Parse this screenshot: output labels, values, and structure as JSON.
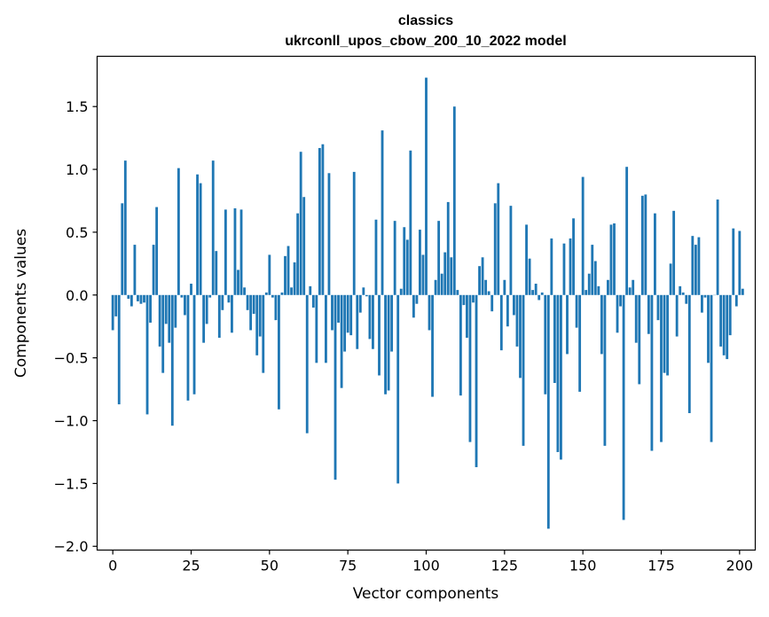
{
  "chart_data": {
    "type": "bar",
    "title": "classics",
    "subtitle": "ukrconll_upos_cbow_200_10_2022 model",
    "xlabel": "Vector components",
    "ylabel": "Components values",
    "xlim": [
      -5,
      205
    ],
    "ylim": [
      -2.03,
      1.9
    ],
    "xticks": [
      0,
      25,
      50,
      75,
      100,
      125,
      150,
      175,
      200
    ],
    "xtick_labels": [
      "0",
      "25",
      "50",
      "75",
      "100",
      "125",
      "150",
      "175",
      "200"
    ],
    "yticks": [
      -2.0,
      -1.5,
      -1.0,
      -0.5,
      0.0,
      0.5,
      1.0,
      1.5
    ],
    "ytick_labels": [
      "−2.0",
      "−1.5",
      "−1.0",
      "−0.5",
      "0.0",
      "0.5",
      "1.0",
      "1.5"
    ],
    "bar_color": "#1f77b4",
    "grid": false,
    "values": [
      -0.28,
      -0.17,
      -0.87,
      0.73,
      1.07,
      -0.03,
      -0.09,
      0.4,
      -0.05,
      -0.07,
      -0.06,
      -0.95,
      -0.22,
      0.4,
      0.7,
      -0.41,
      -0.62,
      -0.23,
      -0.38,
      -1.04,
      -0.26,
      1.01,
      -0.02,
      -0.16,
      -0.84,
      0.09,
      -0.79,
      0.96,
      0.89,
      -0.38,
      -0.23,
      -0.02,
      1.07,
      0.35,
      -0.34,
      -0.12,
      0.68,
      -0.06,
      -0.3,
      0.69,
      0.2,
      0.68,
      0.06,
      -0.12,
      -0.28,
      -0.15,
      -0.48,
      -0.33,
      -0.62,
      0.02,
      0.32,
      -0.02,
      -0.2,
      -0.91,
      0.02,
      0.31,
      0.39,
      0.06,
      0.26,
      0.65,
      1.14,
      0.78,
      -1.1,
      0.07,
      -0.1,
      -0.54,
      1.17,
      1.2,
      -0.54,
      0.97,
      -0.28,
      -1.47,
      -0.22,
      -0.74,
      -0.45,
      -0.3,
      -0.32,
      0.98,
      -0.43,
      -0.14,
      0.06,
      -0.01,
      -0.35,
      -0.43,
      0.6,
      -0.64,
      1.31,
      -0.79,
      -0.76,
      -0.45,
      0.59,
      -1.5,
      0.05,
      0.54,
      0.44,
      1.15,
      -0.18,
      -0.07,
      0.52,
      0.32,
      1.73,
      -0.28,
      -0.81,
      0.12,
      0.59,
      0.17,
      0.34,
      0.74,
      0.3,
      1.5,
      0.04,
      -0.8,
      -0.08,
      -0.34,
      -1.17,
      -0.06,
      -1.37,
      0.23,
      0.3,
      0.12,
      0.03,
      -0.13,
      0.73,
      0.89,
      -0.44,
      0.12,
      -0.25,
      0.71,
      -0.16,
      -0.41,
      -0.66,
      -1.2,
      0.56,
      0.29,
      0.04,
      0.09,
      -0.04,
      0.02,
      -0.79,
      -1.86,
      0.45,
      -0.7,
      -1.25,
      -1.31,
      0.41,
      -0.47,
      0.45,
      0.61,
      -0.26,
      -0.77,
      0.94,
      0.04,
      0.17,
      0.4,
      0.27,
      0.07,
      -0.47,
      -1.2,
      0.12,
      0.56,
      0.57,
      -0.3,
      -0.09,
      -1.79,
      1.02,
      0.06,
      0.12,
      -0.38,
      -0.71,
      0.79,
      0.8,
      -0.31,
      -1.24,
      0.65,
      -0.2,
      -1.17,
      -0.62,
      -0.64,
      0.25,
      0.67,
      -0.33,
      0.07,
      0.02,
      -0.07,
      -0.94,
      0.47,
      0.4,
      0.46,
      -0.14,
      -0.02,
      -0.54,
      -1.17,
      0.0,
      0.76,
      -0.41,
      -0.48,
      -0.51,
      -0.32,
      0.53,
      -0.09,
      0.51,
      0.05
    ]
  }
}
